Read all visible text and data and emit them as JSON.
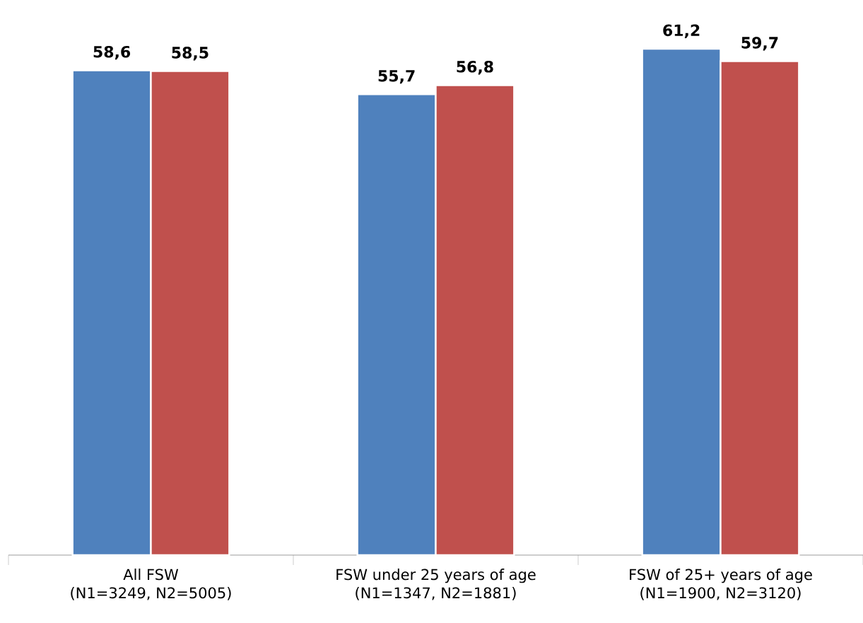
{
  "chart_data": {
    "type": "bar",
    "categories": [
      "All FSW\n(N1=3249, N2=5005)",
      "FSW under 25 years of age\n(N1=1347, N2=1881)",
      "FSW of 25+ years of age\n(N1=1900, N2=3120)"
    ],
    "series": [
      {
        "color": "#4f81bd",
        "values": [
          58.6,
          55.7,
          61.2
        ],
        "value_labels": [
          "58,6",
          "55,7",
          "61,2"
        ]
      },
      {
        "color": "#c0504d",
        "values": [
          58.5,
          56.8,
          59.7
        ],
        "value_labels": [
          "58,5",
          "56,8",
          "59,7"
        ]
      }
    ]
  }
}
